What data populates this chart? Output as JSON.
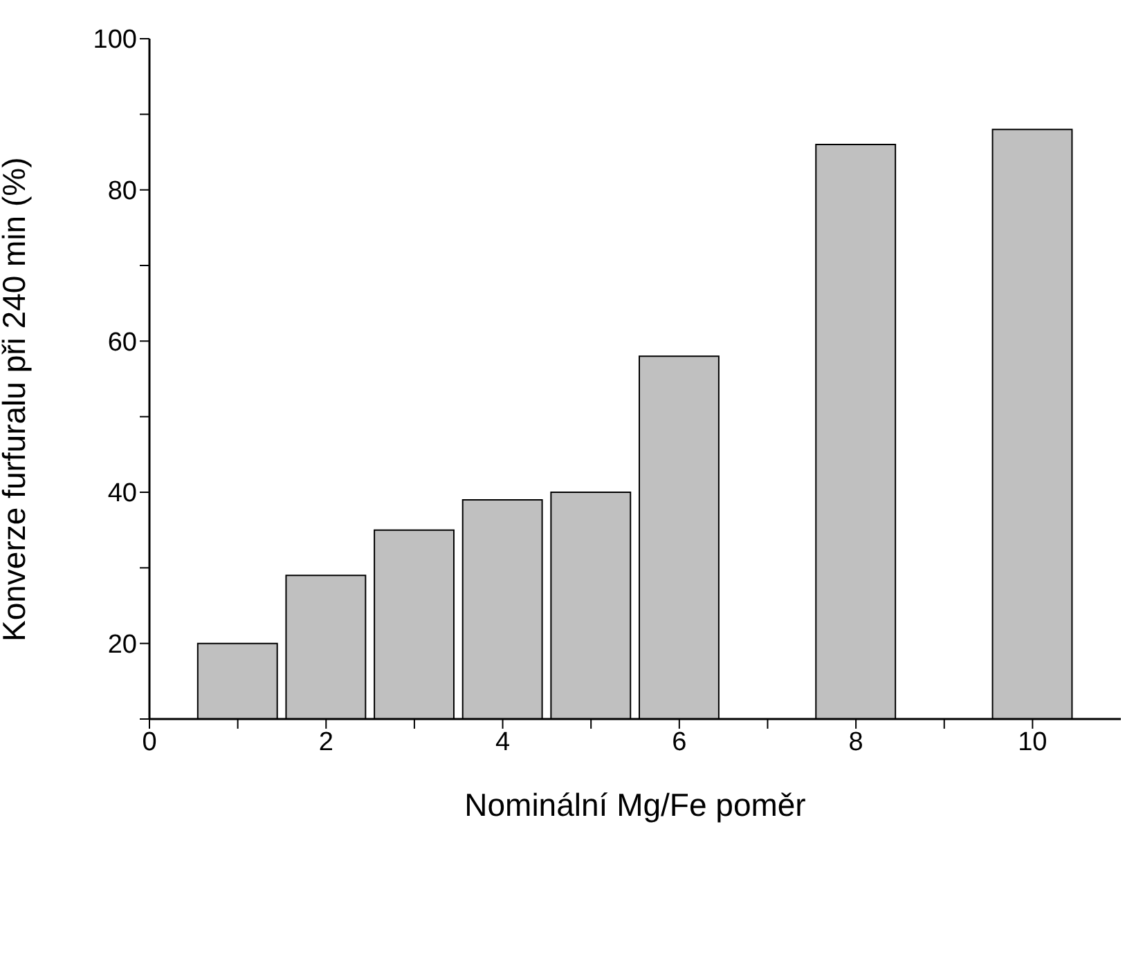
{
  "chart_data": {
    "type": "bar",
    "xlabel": "Nominální  Mg/Fe poměr",
    "ylabel": "Konverze furfuralu při 240 min (%)",
    "x": [
      1,
      2,
      3,
      4,
      5,
      6,
      8,
      10
    ],
    "values": [
      20,
      29,
      35,
      39,
      40,
      58,
      86,
      88
    ],
    "color": "#c0c0c0",
    "xlim": [
      0,
      11
    ],
    "xticks": [
      0,
      {
        "value": 1,
        "label": null
      },
      2,
      {
        "value": 3,
        "label": null
      },
      4,
      {
        "value": 5,
        "label": null
      },
      6,
      {
        "value": 7,
        "label": null
      },
      8,
      {
        "value": 9,
        "label": null
      },
      10
    ],
    "ylim": [
      10,
      100
    ],
    "yticks": [
      {
        "value": 10,
        "label": null
      },
      20,
      {
        "value": 30,
        "label": null
      },
      40,
      {
        "value": 50,
        "label": null
      },
      60,
      {
        "value": 70,
        "label": null
      },
      80,
      {
        "value": 90,
        "label": null
      },
      100
    ],
    "grid": false,
    "legend": false
  }
}
